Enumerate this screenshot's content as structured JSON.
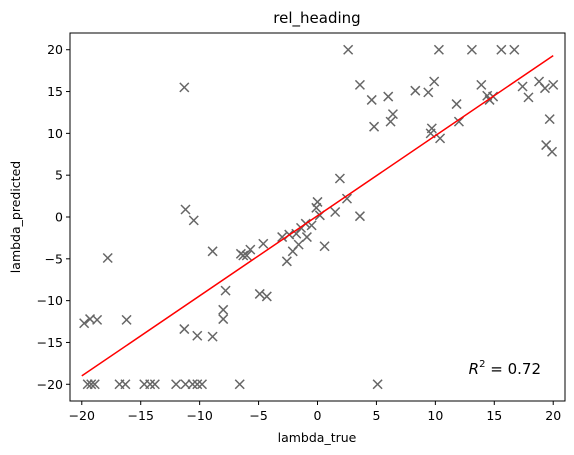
{
  "chart_data": {
    "type": "scatter",
    "title": "rel_heading",
    "xlabel": "lambda_true",
    "ylabel": "lambda_predicted",
    "xlim": [
      -21,
      21
    ],
    "ylim": [
      -22,
      22
    ],
    "xticks": [
      -20,
      -15,
      -10,
      -5,
      0,
      5,
      10,
      15,
      20
    ],
    "yticks": [
      -20,
      -15,
      -10,
      -5,
      0,
      5,
      10,
      15,
      20
    ],
    "marker": "x",
    "marker_color": "#666666",
    "fit_color": "#ff0000",
    "grid": false,
    "annotation": {
      "text_prefix": "R",
      "superscript": "2",
      "text_suffix": " = 0.72",
      "position": "bottom-right"
    },
    "fit_line": {
      "x": [
        -20,
        20
      ],
      "y": [
        -19.0,
        19.3
      ]
    },
    "points": [
      [
        -19.8,
        -12.7
      ],
      [
        -19.3,
        -12.2
      ],
      [
        -18.7,
        -12.3
      ],
      [
        -17.8,
        -4.9
      ],
      [
        -16.2,
        -12.3
      ],
      [
        -19.5,
        -20
      ],
      [
        -19.2,
        -20
      ],
      [
        -18.9,
        -20
      ],
      [
        -16.8,
        -20
      ],
      [
        -16.3,
        -20
      ],
      [
        -14.7,
        -20
      ],
      [
        -14.2,
        -20
      ],
      [
        -13.8,
        -20
      ],
      [
        -12.0,
        -20
      ],
      [
        -11.2,
        -20
      ],
      [
        -10.6,
        -20
      ],
      [
        -10.2,
        -20
      ],
      [
        -9.8,
        -20
      ],
      [
        -6.6,
        -20
      ],
      [
        -11.3,
        15.5
      ],
      [
        -11.2,
        0.9
      ],
      [
        -10.5,
        -0.4
      ],
      [
        -11.3,
        -13.4
      ],
      [
        -10.2,
        -14.2
      ],
      [
        -8.9,
        -14.3
      ],
      [
        -8.9,
        -4.1
      ],
      [
        -8.0,
        -11.1
      ],
      [
        -8.0,
        -12.2
      ],
      [
        -7.8,
        -8.8
      ],
      [
        -6.5,
        -4.4
      ],
      [
        -6.3,
        -4.6
      ],
      [
        -6.0,
        -4.6
      ],
      [
        -5.7,
        -3.9
      ],
      [
        -4.9,
        -9.2
      ],
      [
        -4.3,
        -9.5
      ],
      [
        -4.6,
        -3.2
      ],
      [
        -3.0,
        -2.4
      ],
      [
        -2.6,
        -5.3
      ],
      [
        -2.4,
        -2.1
      ],
      [
        -2.1,
        -4.1
      ],
      [
        -1.6,
        -3.3
      ],
      [
        -1.8,
        -2.0
      ],
      [
        -1.4,
        -1.3
      ],
      [
        -1.0,
        -0.8
      ],
      [
        -0.9,
        -2.4
      ],
      [
        -0.5,
        -1.0
      ],
      [
        -0.1,
        1.1
      ],
      [
        0.0,
        1.8
      ],
      [
        0.2,
        0.2
      ],
      [
        0.6,
        -3.5
      ],
      [
        1.5,
        0.6
      ],
      [
        1.9,
        4.6
      ],
      [
        2.5,
        2.2
      ],
      [
        2.6,
        20.0
      ],
      [
        3.6,
        0.1
      ],
      [
        3.6,
        15.8
      ],
      [
        4.6,
        14.0
      ],
      [
        4.8,
        10.8
      ],
      [
        5.1,
        -20.0
      ],
      [
        6.0,
        14.4
      ],
      [
        6.2,
        11.4
      ],
      [
        6.4,
        12.3
      ],
      [
        8.3,
        15.1
      ],
      [
        9.4,
        14.9
      ],
      [
        9.6,
        10.0
      ],
      [
        9.7,
        10.6
      ],
      [
        9.9,
        16.2
      ],
      [
        10.3,
        20.0
      ],
      [
        10.4,
        9.4
      ],
      [
        11.8,
        13.5
      ],
      [
        12.0,
        11.4
      ],
      [
        13.1,
        20.0
      ],
      [
        13.9,
        15.8
      ],
      [
        14.4,
        14.5
      ],
      [
        14.6,
        14.0
      ],
      [
        14.9,
        14.4
      ],
      [
        15.6,
        20.0
      ],
      [
        16.7,
        20.0
      ],
      [
        17.4,
        15.6
      ],
      [
        17.9,
        14.3
      ],
      [
        18.8,
        16.2
      ],
      [
        19.3,
        15.4
      ],
      [
        19.4,
        8.6
      ],
      [
        19.7,
        11.7
      ],
      [
        19.9,
        7.8
      ],
      [
        20.0,
        15.8
      ]
    ]
  }
}
